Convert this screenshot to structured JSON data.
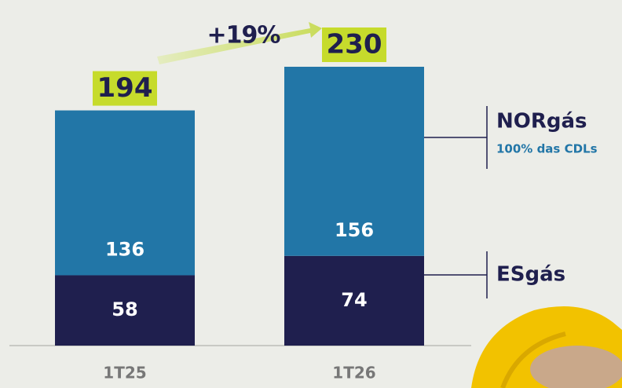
{
  "chart_data": {
    "type": "stacked-bar",
    "categories": [
      "1T25",
      "1T26"
    ],
    "series": [
      {
        "name": "ESgás",
        "color": "#1f1f4e",
        "values": [
          58,
          74
        ]
      },
      {
        "name": "NORgás",
        "note": "100% das CDLs",
        "color": "#2276a7",
        "values": [
          136,
          156
        ]
      }
    ],
    "totals": [
      194,
      230
    ],
    "growth_label": "+19%",
    "total_label_color": "#c6db2c"
  }
}
